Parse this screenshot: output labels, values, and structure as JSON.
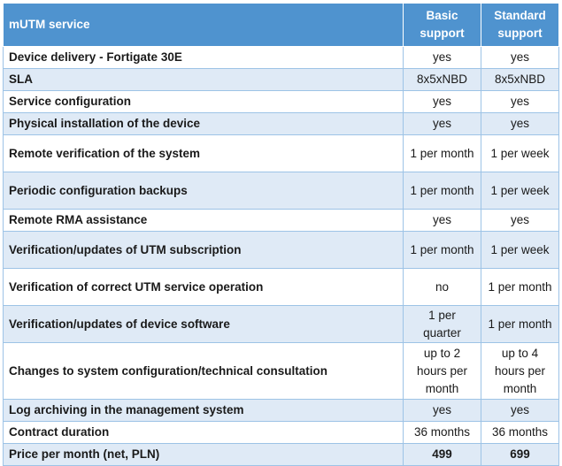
{
  "header": {
    "service": "mUTM service",
    "basic": "Basic support",
    "standard": "Standard support"
  },
  "rows": [
    {
      "feature": "Device delivery - Fortigate 30E",
      "basic": "yes",
      "standard": "yes"
    },
    {
      "feature": "SLA",
      "basic": "8x5xNBD",
      "standard": "8x5xNBD"
    },
    {
      "feature": "Service configuration",
      "basic": "yes",
      "standard": "yes"
    },
    {
      "feature": "Physical installation of the device",
      "basic": "yes",
      "standard": "yes"
    },
    {
      "feature": "Remote verification of the system",
      "basic": "1 per month",
      "standard": "1 per week"
    },
    {
      "feature": "Periodic configuration backups",
      "basic": "1 per month",
      "standard": "1 per week"
    },
    {
      "feature": "Remote RMA assistance",
      "basic": "yes",
      "standard": "yes"
    },
    {
      "feature": "Verification/updates of UTM subscription",
      "basic": "1 per month",
      "standard": "1 per week"
    },
    {
      "feature": "Verification of correct UTM service operation",
      "basic": "no",
      "standard": "1 per month"
    },
    {
      "feature": "Verification/updates of device software",
      "basic": "1 per quarter",
      "standard": "1 per month"
    },
    {
      "feature": "Changes to system configuration/technical consultation",
      "basic": "up to 2 hours per month",
      "standard": "up to 4 hours per month"
    },
    {
      "feature": "Log archiving in the management system",
      "basic": "yes",
      "standard": "yes"
    },
    {
      "feature": "Contract duration",
      "basic": "36 months",
      "standard": "36 months"
    },
    {
      "feature": "Price per month (net, PLN)",
      "basic": "499",
      "standard": "699"
    }
  ]
}
